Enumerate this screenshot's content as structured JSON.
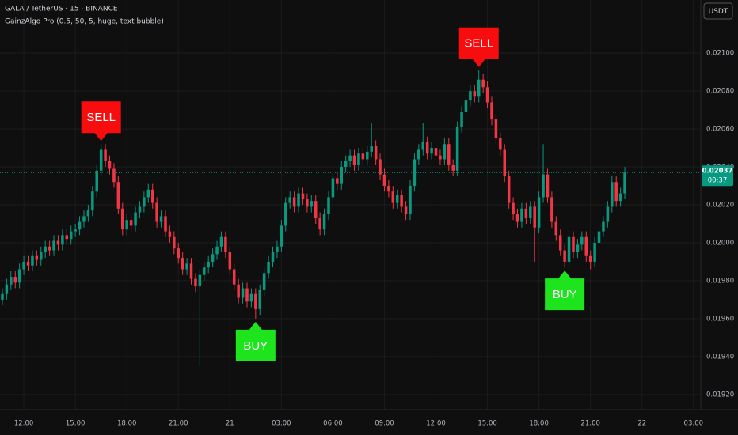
{
  "chart_data": {
    "type": "candlestick",
    "title": "GALA / TetherUS · 15 · BINANCE",
    "subtitle": "GainzAlgo Pro (0.5, 50, 5, huge, text bubble)",
    "currency": "USDT",
    "up_color": "#089981",
    "down_color": "#f23645",
    "grid": true,
    "xlim": [
      -0.55,
      162.7
    ],
    "xticks": [
      {
        "value": 5,
        "label": "12:00"
      },
      {
        "value": 17,
        "label": "15:00"
      },
      {
        "value": 29,
        "label": "18:00"
      },
      {
        "value": 41,
        "label": "21:00"
      },
      {
        "value": 53,
        "label": "21"
      },
      {
        "value": 65,
        "label": "03:00"
      },
      {
        "value": 77,
        "label": "06:00"
      },
      {
        "value": 89,
        "label": "09:00"
      },
      {
        "value": 101,
        "label": "12:00"
      },
      {
        "value": 113,
        "label": "15:00"
      },
      {
        "value": 125,
        "label": "18:00"
      },
      {
        "value": 137,
        "label": "21:00"
      },
      {
        "value": 149,
        "label": "22"
      },
      {
        "value": 161,
        "label": "03:00"
      }
    ],
    "ylim": [
      0.01912,
      0.02128
    ],
    "yticks": [
      {
        "value": 0.0192,
        "label": "0.01920"
      },
      {
        "value": 0.0194,
        "label": "0.01940"
      },
      {
        "value": 0.0196,
        "label": "0.01960"
      },
      {
        "value": 0.0198,
        "label": "0.01980"
      },
      {
        "value": 0.02,
        "label": "0.02000"
      },
      {
        "value": 0.0202,
        "label": "0.02020"
      },
      {
        "value": 0.0204,
        "label": "0.02040"
      },
      {
        "value": 0.0206,
        "label": "0.02060"
      },
      {
        "value": 0.0208,
        "label": "0.02080"
      },
      {
        "value": 0.021,
        "label": "0.02100"
      }
    ],
    "open": [
      0.0197,
      0.01973,
      0.01978,
      0.01982,
      0.01979,
      0.01986,
      0.0199,
      0.01988,
      0.01993,
      0.01991,
      0.01995,
      0.01998,
      0.01996,
      0.02001,
      0.01999,
      0.02004,
      0.02002,
      0.02006,
      0.02007,
      0.02011,
      0.02014,
      0.02017,
      0.02027,
      0.02038,
      0.02049,
      0.02043,
      0.02039,
      0.02032,
      0.02018,
      0.02007,
      0.02012,
      0.02009,
      0.02016,
      0.02019,
      0.02024,
      0.02028,
      0.02021,
      0.02011,
      0.02014,
      0.02006,
      0.02003,
      0.01997,
      0.01992,
      0.01986,
      0.01989,
      0.01981,
      0.01977,
      0.01983,
      0.01987,
      0.0199,
      0.01994,
      0.01998,
      0.02003,
      0.01995,
      0.01986,
      0.01978,
      0.01971,
      0.01976,
      0.01969,
      0.01973,
      0.01965,
      0.01975,
      0.01984,
      0.0199,
      0.01995,
      0.01998,
      0.02009,
      0.02021,
      0.02024,
      0.02019,
      0.02026,
      0.02023,
      0.02019,
      0.02022,
      0.02013,
      0.02007,
      0.02015,
      0.02024,
      0.02034,
      0.02031,
      0.0204,
      0.02043,
      0.02046,
      0.02041,
      0.02047,
      0.02044,
      0.02048,
      0.02051,
      0.02044,
      0.02036,
      0.0203,
      0.02027,
      0.02021,
      0.02025,
      0.02019,
      0.02015,
      0.0203,
      0.02044,
      0.02049,
      0.02053,
      0.02047,
      0.0205,
      0.02046,
      0.02044,
      0.02052,
      0.02041,
      0.02038,
      0.02061,
      0.02069,
      0.02075,
      0.0208,
      0.02077,
      0.02086,
      0.02082,
      0.02074,
      0.02065,
      0.02055,
      0.02049,
      0.02035,
      0.02021,
      0.02015,
      0.02011,
      0.02018,
      0.02013,
      0.02019,
      0.02008,
      0.02024,
      0.02036,
      0.02024,
      0.02011,
      0.02004,
      0.01996,
      0.0199,
      0.02003,
      0.01995,
      0.01999,
      0.02003,
      0.01993,
      0.0199,
      0.02,
      0.02006,
      0.02011,
      0.02019,
      0.02032,
      0.02022,
      0.02026
    ],
    "high": [
      0.01976,
      0.01981,
      0.01985,
      0.01985,
      0.01989,
      0.01993,
      0.01993,
      0.01996,
      0.01996,
      0.01998,
      0.02001,
      0.02001,
      0.02004,
      0.02004,
      0.02007,
      0.02007,
      0.02009,
      0.0201,
      0.02014,
      0.02017,
      0.0202,
      0.0203,
      0.02041,
      0.02052,
      0.02052,
      0.02046,
      0.02042,
      0.02035,
      0.02021,
      0.02015,
      0.02015,
      0.02019,
      0.02022,
      0.02027,
      0.02031,
      0.02031,
      0.02024,
      0.02017,
      0.02017,
      0.02009,
      0.02006,
      0.02,
      0.01995,
      0.01992,
      0.01992,
      0.01984,
      0.01986,
      0.0199,
      0.01993,
      0.01997,
      0.02001,
      0.02006,
      0.02006,
      0.01998,
      0.01989,
      0.01981,
      0.01979,
      0.01979,
      0.01976,
      0.01976,
      0.01978,
      0.01987,
      0.01993,
      0.01998,
      0.02001,
      0.02012,
      0.02024,
      0.02027,
      0.02027,
      0.02029,
      0.02029,
      0.02026,
      0.02025,
      0.02025,
      0.02016,
      0.02018,
      0.02027,
      0.02037,
      0.02037,
      0.02043,
      0.02046,
      0.02049,
      0.02049,
      0.0205,
      0.0205,
      0.02051,
      0.02063,
      0.02054,
      0.02047,
      0.02039,
      0.02033,
      0.0203,
      0.02028,
      0.02028,
      0.02022,
      0.02033,
      0.02047,
      0.02052,
      0.02063,
      0.02056,
      0.02053,
      0.02053,
      0.02049,
      0.02055,
      0.02055,
      0.02044,
      0.02064,
      0.02072,
      0.02078,
      0.02083,
      0.02083,
      0.02091,
      0.02089,
      0.02085,
      0.02077,
      0.02068,
      0.02058,
      0.02052,
      0.02038,
      0.02024,
      0.02018,
      0.02021,
      0.02021,
      0.02022,
      0.02022,
      0.02027,
      0.02052,
      0.02039,
      0.02027,
      0.02014,
      0.02007,
      0.01999,
      0.02006,
      0.02006,
      0.02002,
      0.02006,
      0.02006,
      0.01996,
      0.02003,
      0.02009,
      0.02014,
      0.02022,
      0.02035,
      0.02035,
      0.02029,
      0.0204
    ],
    "low": [
      0.01967,
      0.0197,
      0.01975,
      0.01976,
      0.01976,
      0.01983,
      0.01985,
      0.01985,
      0.01988,
      0.01988,
      0.01992,
      0.01993,
      0.01993,
      0.01996,
      0.01996,
      0.01999,
      0.01999,
      0.02003,
      0.02004,
      0.02008,
      0.02011,
      0.02014,
      0.02024,
      0.02035,
      0.0204,
      0.02036,
      0.02029,
      0.02015,
      0.02004,
      0.02004,
      0.02006,
      0.02006,
      0.02013,
      0.02016,
      0.02021,
      0.02018,
      0.02008,
      0.02008,
      0.02003,
      0.02,
      0.01994,
      0.01989,
      0.01983,
      0.01983,
      0.01978,
      0.01974,
      0.01935,
      0.0198,
      0.01984,
      0.01987,
      0.01991,
      0.01995,
      0.01992,
      0.01983,
      0.01975,
      0.01968,
      0.01968,
      0.01966,
      0.01966,
      0.0196,
      0.01962,
      0.01972,
      0.01981,
      0.01987,
      0.01992,
      0.01995,
      0.02006,
      0.02018,
      0.02016,
      0.02016,
      0.0202,
      0.02016,
      0.02016,
      0.0201,
      0.02004,
      0.02004,
      0.02012,
      0.02021,
      0.02028,
      0.02028,
      0.02037,
      0.0204,
      0.02038,
      0.02038,
      0.02041,
      0.02041,
      0.02045,
      0.02041,
      0.02033,
      0.02027,
      0.02024,
      0.02018,
      0.02018,
      0.02016,
      0.02012,
      0.02012,
      0.02027,
      0.02041,
      0.02046,
      0.02044,
      0.02044,
      0.02043,
      0.02041,
      0.02041,
      0.02038,
      0.02035,
      0.02035,
      0.02058,
      0.02066,
      0.02072,
      0.02074,
      0.02074,
      0.02079,
      0.02071,
      0.02062,
      0.02052,
      0.02046,
      0.02032,
      0.02018,
      0.02012,
      0.02008,
      0.02008,
      0.0201,
      0.0201,
      0.0199,
      0.02005,
      0.02021,
      0.02021,
      0.02008,
      0.02001,
      0.01993,
      0.01987,
      0.01987,
      0.01992,
      0.01992,
      0.01996,
      0.0199,
      0.01986,
      0.01987,
      0.01997,
      0.02003,
      0.02008,
      0.02016,
      0.02019,
      0.02019,
      0.02023
    ],
    "close": [
      0.01973,
      0.01978,
      0.01982,
      0.01979,
      0.01986,
      0.0199,
      0.01988,
      0.01993,
      0.01991,
      0.01995,
      0.01998,
      0.01996,
      0.02001,
      0.01999,
      0.02004,
      0.02002,
      0.02006,
      0.02007,
      0.02011,
      0.02014,
      0.02017,
      0.02027,
      0.02038,
      0.02049,
      0.02043,
      0.02039,
      0.02032,
      0.02018,
      0.02007,
      0.02012,
      0.02009,
      0.02016,
      0.02019,
      0.02024,
      0.02028,
      0.02021,
      0.02011,
      0.02014,
      0.02006,
      0.02003,
      0.01997,
      0.01992,
      0.01986,
      0.01989,
      0.01981,
      0.01977,
      0.01983,
      0.01987,
      0.0199,
      0.01994,
      0.01998,
      0.02003,
      0.01995,
      0.01986,
      0.01978,
      0.01971,
      0.01976,
      0.01969,
      0.01973,
      0.01965,
      0.01975,
      0.01984,
      0.0199,
      0.01995,
      0.01998,
      0.02009,
      0.02021,
      0.02024,
      0.02019,
      0.02026,
      0.02023,
      0.02019,
      0.02022,
      0.02013,
      0.02007,
      0.02015,
      0.02024,
      0.02034,
      0.02031,
      0.0204,
      0.02043,
      0.02046,
      0.02041,
      0.02047,
      0.02044,
      0.02048,
      0.02051,
      0.02044,
      0.02036,
      0.0203,
      0.02027,
      0.02021,
      0.02025,
      0.02019,
      0.02015,
      0.0203,
      0.02044,
      0.02049,
      0.02053,
      0.02047,
      0.0205,
      0.02046,
      0.02044,
      0.02052,
      0.02041,
      0.02038,
      0.02061,
      0.02069,
      0.02075,
      0.0208,
      0.02077,
      0.02086,
      0.02082,
      0.02074,
      0.02065,
      0.02055,
      0.02049,
      0.02035,
      0.02021,
      0.02015,
      0.02011,
      0.02018,
      0.02013,
      0.02019,
      0.02008,
      0.02024,
      0.02036,
      0.02024,
      0.02011,
      0.02004,
      0.01996,
      0.0199,
      0.02003,
      0.01995,
      0.01999,
      0.02003,
      0.01993,
      0.0199,
      0.02,
      0.02006,
      0.02011,
      0.02019,
      0.02032,
      0.02022,
      0.02026,
      0.02037
    ],
    "signals": [
      {
        "label": "SELL",
        "index": 23,
        "color": "#f70d0d"
      },
      {
        "label": "BUY",
        "index": 59,
        "color": "#1de41d"
      },
      {
        "label": "SELL",
        "index": 111,
        "color": "#f70d0d"
      },
      {
        "label": "BUY",
        "index": 131,
        "color": "#1de41d"
      }
    ],
    "last_price": 0.02037,
    "countdown": "00:37"
  }
}
